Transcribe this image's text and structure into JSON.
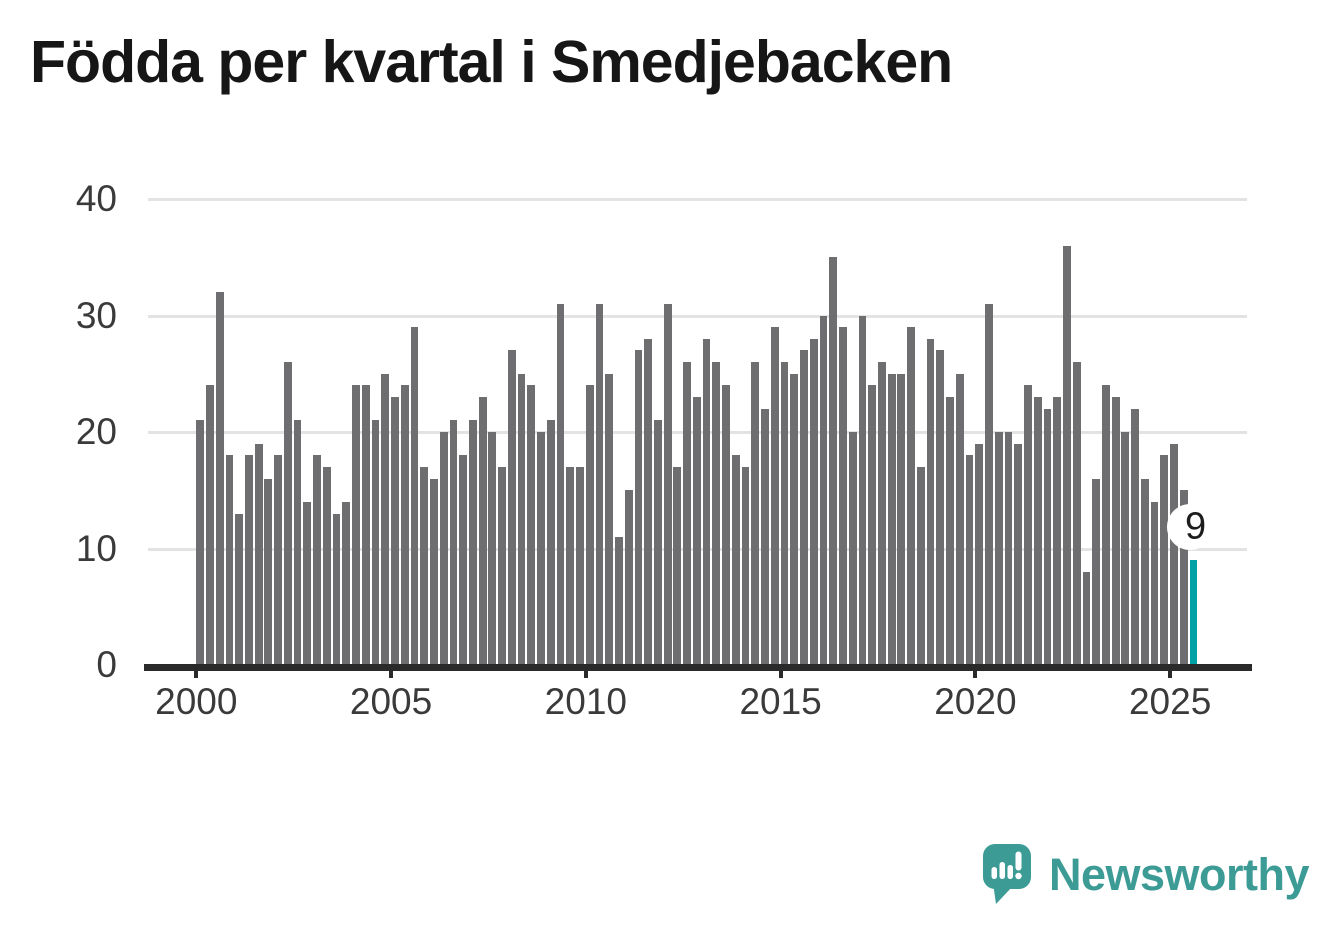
{
  "title": "Födda per kvartal i Smedjebacken",
  "chart_data": {
    "type": "bar",
    "title": "Födda per kvartal i Smedjebacken",
    "x_unit": "quarter",
    "x_start": "2000 Q1",
    "x_end": "2025 Q3",
    "ylim": [
      0,
      40
    ],
    "yticks": [
      0,
      10,
      20,
      30,
      40
    ],
    "xticks": [
      "2000",
      "2005",
      "2010",
      "2015",
      "2020",
      "2025"
    ],
    "grid": "horizontal",
    "legend": "none",
    "values": [
      21,
      24,
      32,
      18,
      13,
      18,
      19,
      16,
      18,
      26,
      21,
      14,
      18,
      17,
      13,
      14,
      24,
      24,
      21,
      25,
      23,
      24,
      29,
      17,
      16,
      20,
      21,
      18,
      21,
      23,
      20,
      17,
      27,
      25,
      24,
      20,
      21,
      31,
      17,
      17,
      24,
      31,
      25,
      11,
      15,
      27,
      28,
      21,
      31,
      17,
      26,
      23,
      28,
      26,
      24,
      18,
      17,
      26,
      22,
      29,
      26,
      25,
      27,
      28,
      30,
      35,
      29,
      20,
      30,
      24,
      26,
      25,
      25,
      29,
      17,
      28,
      27,
      23,
      25,
      18,
      19,
      31,
      20,
      20,
      19,
      24,
      23,
      22,
      23,
      36,
      26,
      8,
      16,
      24,
      23,
      20,
      22,
      16,
      14,
      18,
      19,
      15,
      9
    ],
    "highlight_index": 102,
    "annotation": {
      "text": "9"
    },
    "colors": {
      "bar": "#6e6e71",
      "highlight": "#00a1a6",
      "grid": "#e3e3e3",
      "axis": "#2a2a2a",
      "tick_label": "#3a3a3a",
      "title": "#161616"
    }
  },
  "footer": {
    "brand": "Newsworthy",
    "brand_color": "#3d9b95"
  }
}
